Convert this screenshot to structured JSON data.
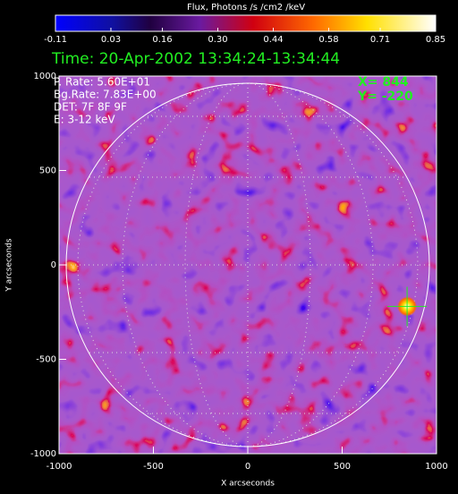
{
  "chart_data": {
    "type": "image",
    "colorbar": {
      "title": "Flux, Photons /s /cm2 /keV",
      "lim": [
        -0.11,
        0.85
      ],
      "ticks": [
        {
          "value": -0.11,
          "label": "-0.11"
        },
        {
          "value": 0.03,
          "label": "0.03"
        },
        {
          "value": 0.16,
          "label": "0.16"
        },
        {
          "value": 0.3,
          "label": "0.30"
        },
        {
          "value": 0.44,
          "label": "0.44"
        },
        {
          "value": 0.58,
          "label": "0.58"
        },
        {
          "value": 0.71,
          "label": "0.71"
        },
        {
          "value": 0.85,
          "label": "0.85"
        }
      ]
    },
    "title": "Time: 20-Apr-2002 13:34:24-13:34:44",
    "info": [
      "P. Rate:  5.60E+01",
      "Bg.Rate:  7.83E+00",
      "DET: 7F 8F 9F",
      "E: 3-12 keV"
    ],
    "marker": {
      "x": 844,
      "y": -220,
      "x_text": "X=  844",
      "y_text": "Y= -220"
    },
    "xlabel": "X arcseconds",
    "ylabel": "Y arcseconds",
    "xlim": [
      -1000,
      1000
    ],
    "ylim": [
      -1000,
      1000
    ],
    "xticks": [
      -1000,
      -500,
      0,
      500,
      1000
    ],
    "yticks": [
      -1000,
      -500,
      0,
      500,
      1000
    ]
  }
}
